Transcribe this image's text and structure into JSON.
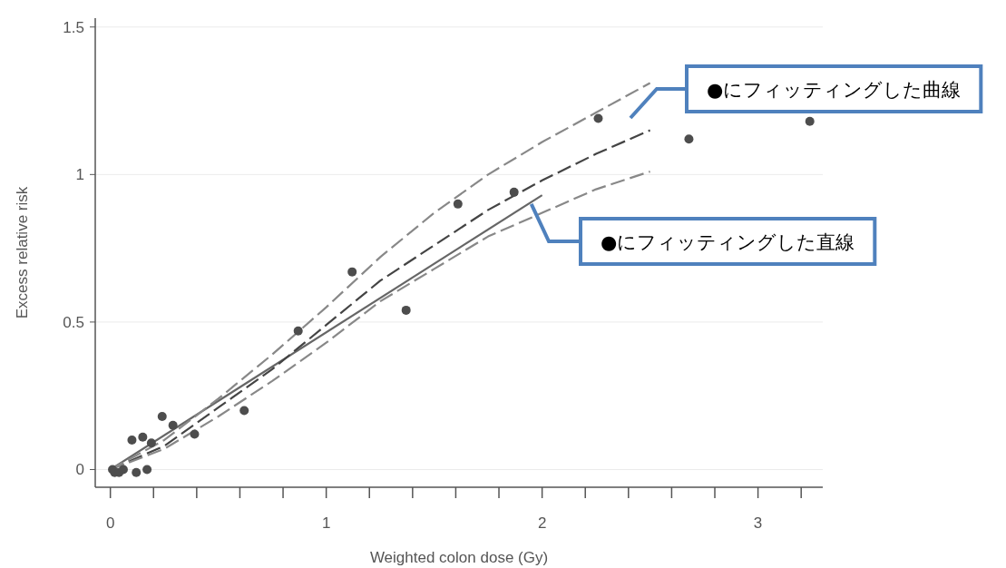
{
  "chart_data": {
    "type": "scatter",
    "xlabel": "Weighted colon dose (Gy)",
    "ylabel": "Excess relative risk",
    "xlim": [
      -0.07,
      3.3
    ],
    "ylim": [
      -0.06,
      1.53
    ],
    "xticks": [
      0,
      {
        "value": 0.2,
        "label": null
      },
      {
        "value": 0.4,
        "label": null
      },
      {
        "value": 0.6,
        "label": null
      },
      {
        "value": 0.8,
        "label": null
      },
      1,
      {
        "value": 1.2,
        "label": null
      },
      {
        "value": 1.4,
        "label": null
      },
      {
        "value": 1.6,
        "label": null
      },
      {
        "value": 1.8,
        "label": null
      },
      2,
      {
        "value": 2.2,
        "label": null
      },
      {
        "value": 2.4,
        "label": null
      },
      {
        "value": 2.6,
        "label": null
      },
      {
        "value": 2.8,
        "label": null
      },
      3,
      {
        "value": 3.2,
        "label": null
      }
    ],
    "yticks": [
      0,
      0.5,
      1,
      1.5
    ],
    "grid": "y",
    "series": [
      {
        "type": "scatter",
        "color": "#4d4d4d",
        "marker": "circle",
        "x": [
          0.01,
          0.02,
          0.04,
          0.06,
          0.1,
          0.12,
          0.15,
          0.17,
          0.19,
          0.24,
          0.29,
          0.39,
          0.62,
          0.87,
          1.12,
          1.37,
          1.61,
          1.87,
          2.26,
          2.68,
          3.24
        ],
        "values": [
          0,
          -0.01,
          -0.01,
          0,
          0.1,
          -0.01,
          0.11,
          0,
          0.09,
          0.18,
          0.15,
          0.12,
          0.2,
          0.47,
          0.67,
          0.54,
          0.9,
          0.94,
          1.19,
          1.12,
          1.18
        ]
      },
      {
        "type": "line",
        "color": "#666666",
        "line_style": "solid",
        "marker": "none",
        "x": [
          0,
          2
        ],
        "values": [
          0,
          0.93
        ]
      },
      {
        "type": "line",
        "color": "#444444",
        "line_style": "dashed",
        "marker": "none",
        "x": [
          0,
          0.25,
          0.5,
          0.75,
          1.0,
          1.25,
          1.5,
          1.75,
          2.0,
          2.25,
          2.5
        ],
        "values": [
          0,
          0.08,
          0.21,
          0.34,
          0.49,
          0.64,
          0.76,
          0.88,
          0.98,
          1.07,
          1.15
        ]
      },
      {
        "type": "line",
        "color": "#888888",
        "line_style": "dashed",
        "marker": "none",
        "x": [
          0,
          0.25,
          0.5,
          0.75,
          1.0,
          1.25,
          1.5,
          1.75,
          2.0,
          2.25,
          2.5
        ],
        "values": [
          0,
          0.07,
          0.18,
          0.3,
          0.43,
          0.57,
          0.68,
          0.79,
          0.87,
          0.95,
          1.01
        ]
      },
      {
        "type": "line",
        "color": "#888888",
        "line_style": "dashed",
        "marker": "none",
        "x": [
          0,
          0.25,
          0.5,
          0.75,
          1.0,
          1.25,
          1.5,
          1.75,
          2.0,
          2.25,
          2.5
        ],
        "values": [
          0,
          0.1,
          0.24,
          0.39,
          0.55,
          0.72,
          0.87,
          1.0,
          1.11,
          1.21,
          1.31
        ]
      }
    ],
    "annotations": [
      "●にフィッティングした曲線",
      {
        "text": "●にフィッティングした直線",
        "x": 1.95,
        "y": 0.9
      }
    ]
  }
}
